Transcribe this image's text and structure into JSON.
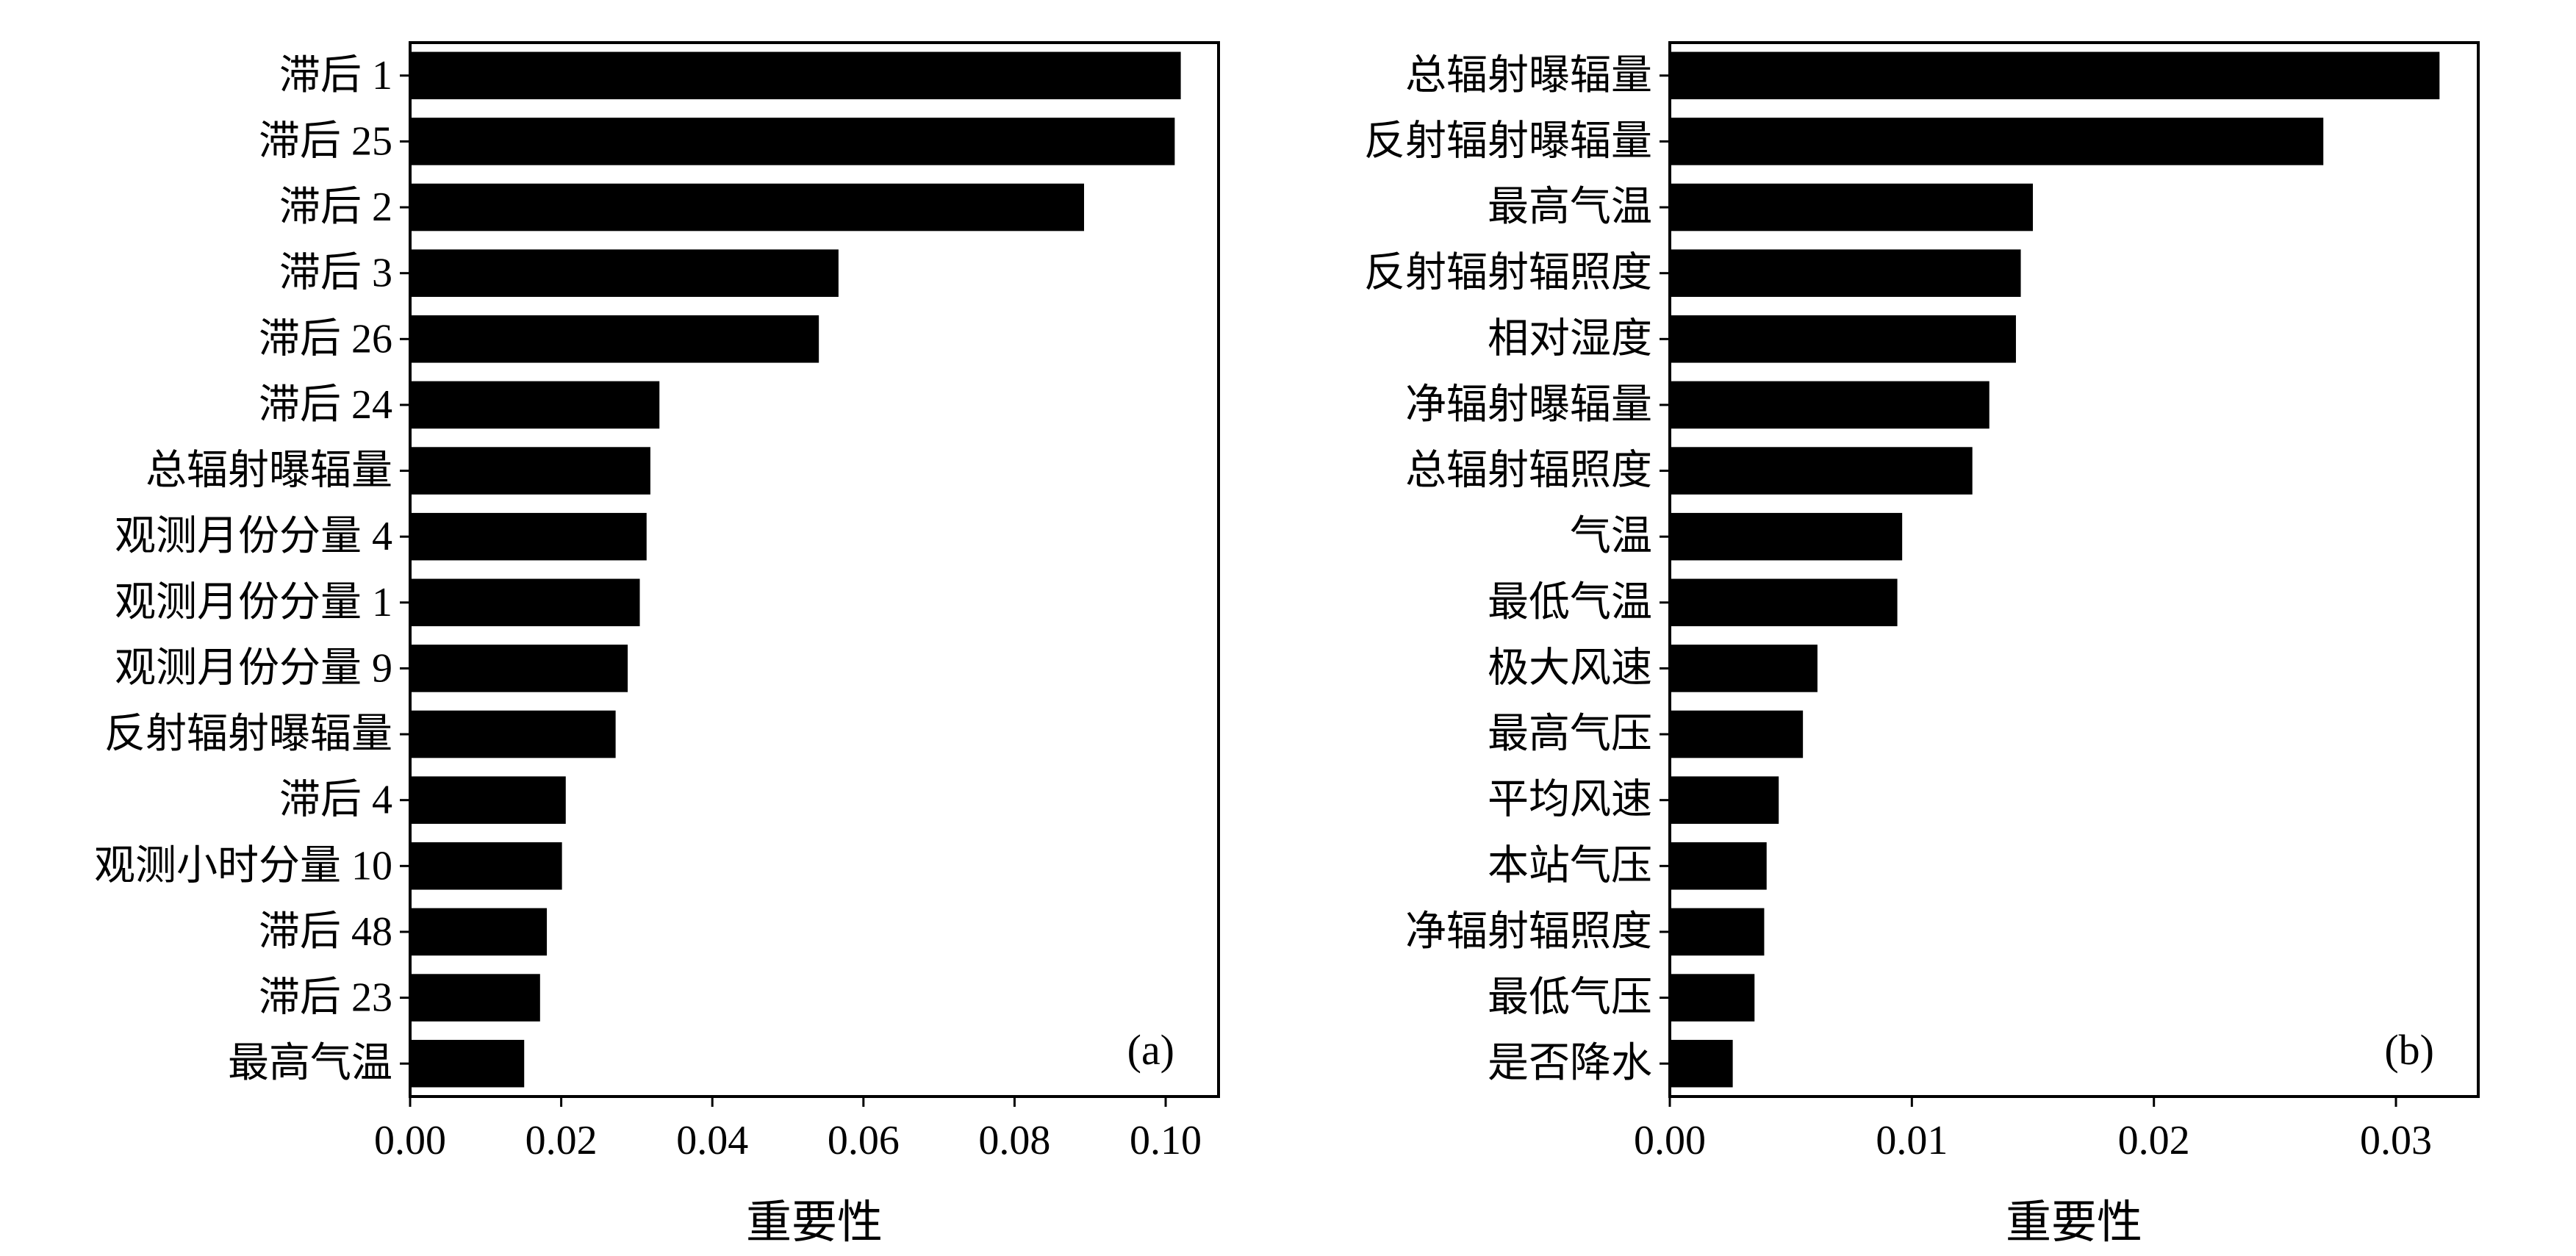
{
  "chart_data": [
    {
      "type": "bar",
      "orientation": "horizontal",
      "panel_label": "(a)",
      "xlabel": "重要性",
      "ylabel": "",
      "xlim": [
        0.0,
        0.107
      ],
      "xticks": [
        "0.00",
        "0.02",
        "0.04",
        "0.06",
        "0.08",
        "0.10"
      ],
      "grid": false,
      "bar_color": "#000000",
      "categories": [
        "滞后 1",
        "滞后 25",
        "滞后 2",
        "滞后 3",
        "滞后 26",
        "滞后 24",
        "总辐射曝辐量",
        "观测月份分量 4",
        "观测月份分量 1",
        "观测月份分量 9",
        "反射辐射曝辐量",
        "滞后 4",
        "观测小时分量 10",
        "滞后 48",
        "滞后 23",
        "最高气温"
      ],
      "values": [
        0.102,
        0.1012,
        0.0892,
        0.0567,
        0.0541,
        0.033,
        0.0318,
        0.0313,
        0.0304,
        0.0288,
        0.0272,
        0.0206,
        0.0201,
        0.0181,
        0.0172,
        0.0151
      ]
    },
    {
      "type": "bar",
      "orientation": "horizontal",
      "panel_label": "(b)",
      "xlabel": "重要性",
      "ylabel": "",
      "xlim": [
        0.0,
        0.0334
      ],
      "xticks": [
        "0.00",
        "0.01",
        "0.02",
        "0.03"
      ],
      "grid": false,
      "bar_color": "#000000",
      "categories": [
        "总辐射曝辐量",
        "反射辐射曝辐量",
        "最高气温",
        "反射辐射辐照度",
        "相对湿度",
        "净辐射曝辐量",
        "总辐射辐照度",
        "气温",
        "最低气温",
        "极大风速",
        "最高气压",
        "平均风速",
        "本站气压",
        "净辐射辐照度",
        "最低气压",
        "是否降水"
      ],
      "values": [
        0.0318,
        0.027,
        0.015,
        0.0145,
        0.0143,
        0.0132,
        0.0125,
        0.0096,
        0.0094,
        0.0061,
        0.0055,
        0.0045,
        0.004,
        0.0039,
        0.0035,
        0.0026
      ]
    }
  ]
}
